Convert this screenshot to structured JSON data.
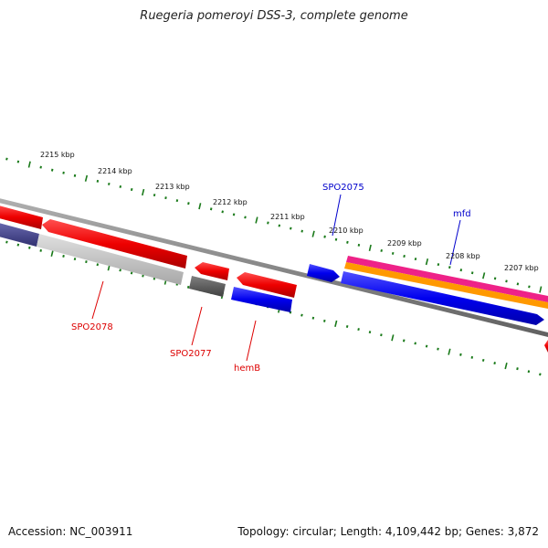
{
  "title": "Ruegeria pomeroyi DSS-3, complete genome",
  "footer": {
    "accession": "Accession: NC_003911",
    "summary": "Topology: circular; Length: 4,109,442 bp; Genes: 3,872"
  },
  "colors": {
    "forward_gene": "#0000ff",
    "reverse_gene": "#ff0000",
    "tick": "#1a7a1a",
    "backbone": "#777777",
    "orf_light": "#c8c8c8",
    "orf_dark": "#505050",
    "orf_purple": "#484890",
    "rna_magenta": "#ee2288",
    "rna_orange": "#ff9900"
  },
  "kbp_ticks": [
    {
      "label": "2215 kbp"
    },
    {
      "label": "2214 kbp"
    },
    {
      "label": "2213 kbp"
    },
    {
      "label": "2212 kbp"
    },
    {
      "label": "2211 kbp"
    },
    {
      "label": "2210 kbp"
    },
    {
      "label": "2209 kbp"
    },
    {
      "label": "2208 kbp"
    },
    {
      "label": "2207 kbp"
    }
  ],
  "gene_labels": [
    {
      "name": "SPO2075",
      "color": "#0000cc"
    },
    {
      "name": "mfd",
      "color": "#0000cc"
    },
    {
      "name": "SPO2078",
      "color": "#dd0000"
    },
    {
      "name": "SPO2077",
      "color": "#dd0000"
    },
    {
      "name": "hemB",
      "color": "#dd0000"
    }
  ]
}
